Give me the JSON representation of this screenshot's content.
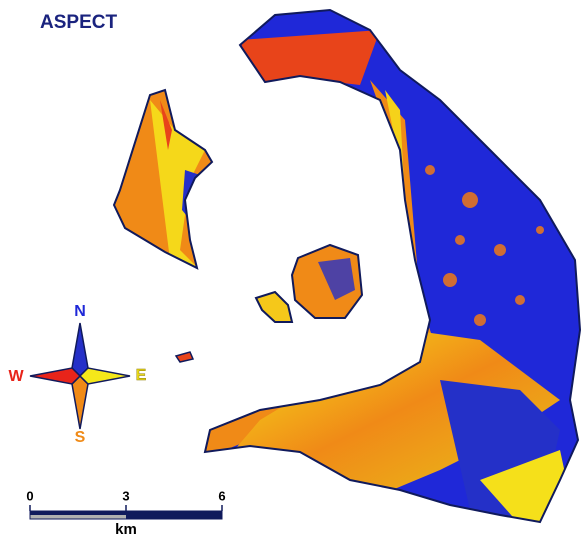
{
  "title": "ASPECT",
  "compass": {
    "north": "N",
    "east": "E",
    "south": "S",
    "west": "W"
  },
  "scale_bar": {
    "ticks": [
      0,
      3,
      6
    ],
    "unit": "km"
  }
}
